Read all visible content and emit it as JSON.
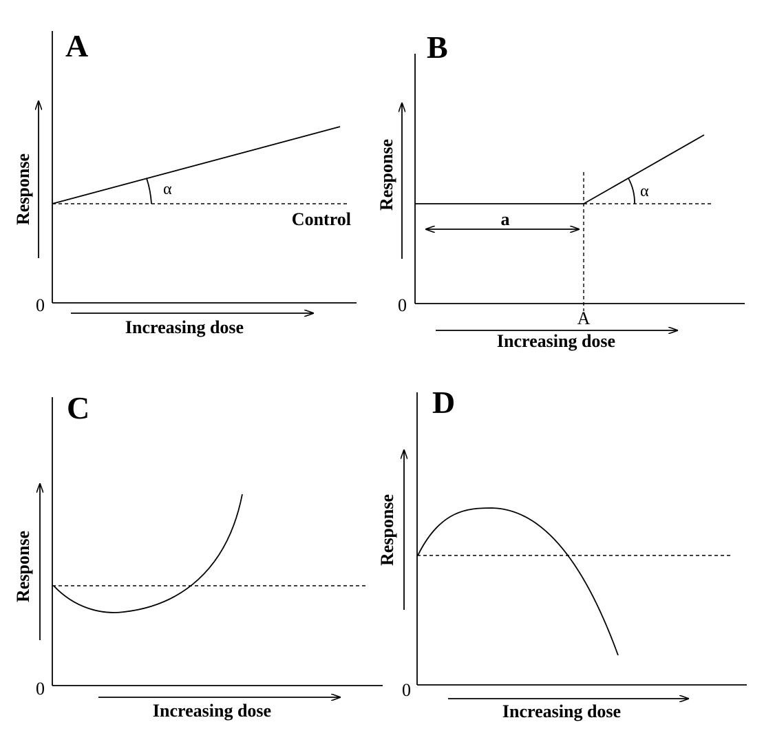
{
  "panels": [
    {
      "letter": "A",
      "ylabel": "Response",
      "xlabel": "Increasing dose",
      "origin": "0",
      "control_label": "Control",
      "angle_label": "α"
    },
    {
      "letter": "B",
      "ylabel": "Response",
      "xlabel": "Increasing dose",
      "origin": "0",
      "threshold_label": "A",
      "distance_label": "a",
      "angle_label": "α"
    },
    {
      "letter": "C",
      "ylabel": "Response",
      "xlabel": "Increasing dose",
      "origin": "0"
    },
    {
      "letter": "D",
      "ylabel": "Response",
      "xlabel": "Increasing dose",
      "origin": "0"
    }
  ]
}
